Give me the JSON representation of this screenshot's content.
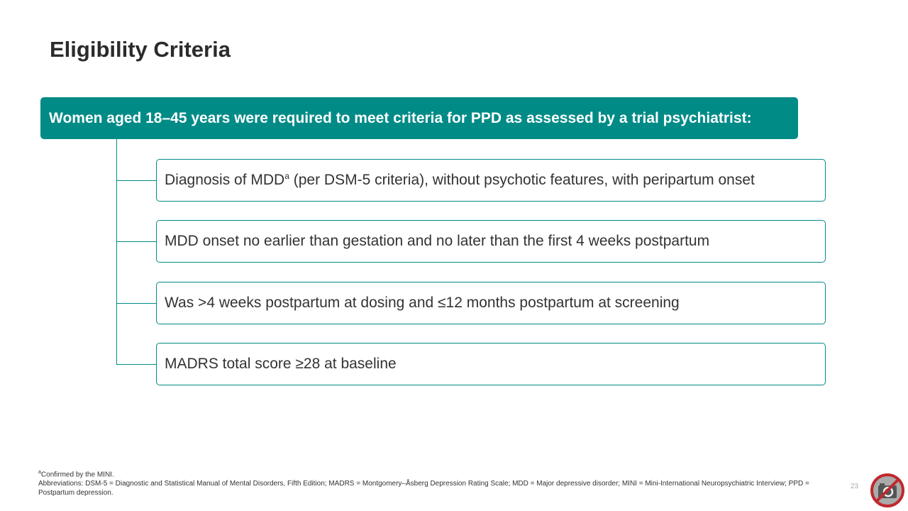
{
  "title": "Eligibility Criteria",
  "header": "Women aged 18–45 years were required to meet criteria for PPD as assessed by a trial psychiatrist:",
  "criteria": [
    {
      "text": "Diagnosis of MDD",
      "sup": "a",
      "text2": " (per DSM-5 criteria), without psychotic features, with peripartum onset"
    },
    {
      "text": "MDD onset no earlier than gestation and no later than the first 4 weeks postpartum"
    },
    {
      "text": "Was >4 weeks postpartum at dosing and ≤12 months postpartum at screening"
    },
    {
      "text": "MADRS total score ≥28 at baseline"
    }
  ],
  "footnotes": {
    "a_sup": "a",
    "a_text": "Confirmed by the MINI.",
    "abbreviations": "Abbreviations: DSM-5 = Diagnostic and Statistical Manual of Mental Disorders, Fifth Edition; MADRS = Montgomery–Åsberg Depression Rating Scale; MDD = Major depressive disorder; MINI = Mini-International Neuropsychiatric Interview; PPD = Postpartum depression."
  },
  "page_number": "23",
  "icons": {
    "no_camera": "no-camera-icon"
  },
  "colors": {
    "accent": "#008B87",
    "no_camera_red": "#C0282D"
  }
}
